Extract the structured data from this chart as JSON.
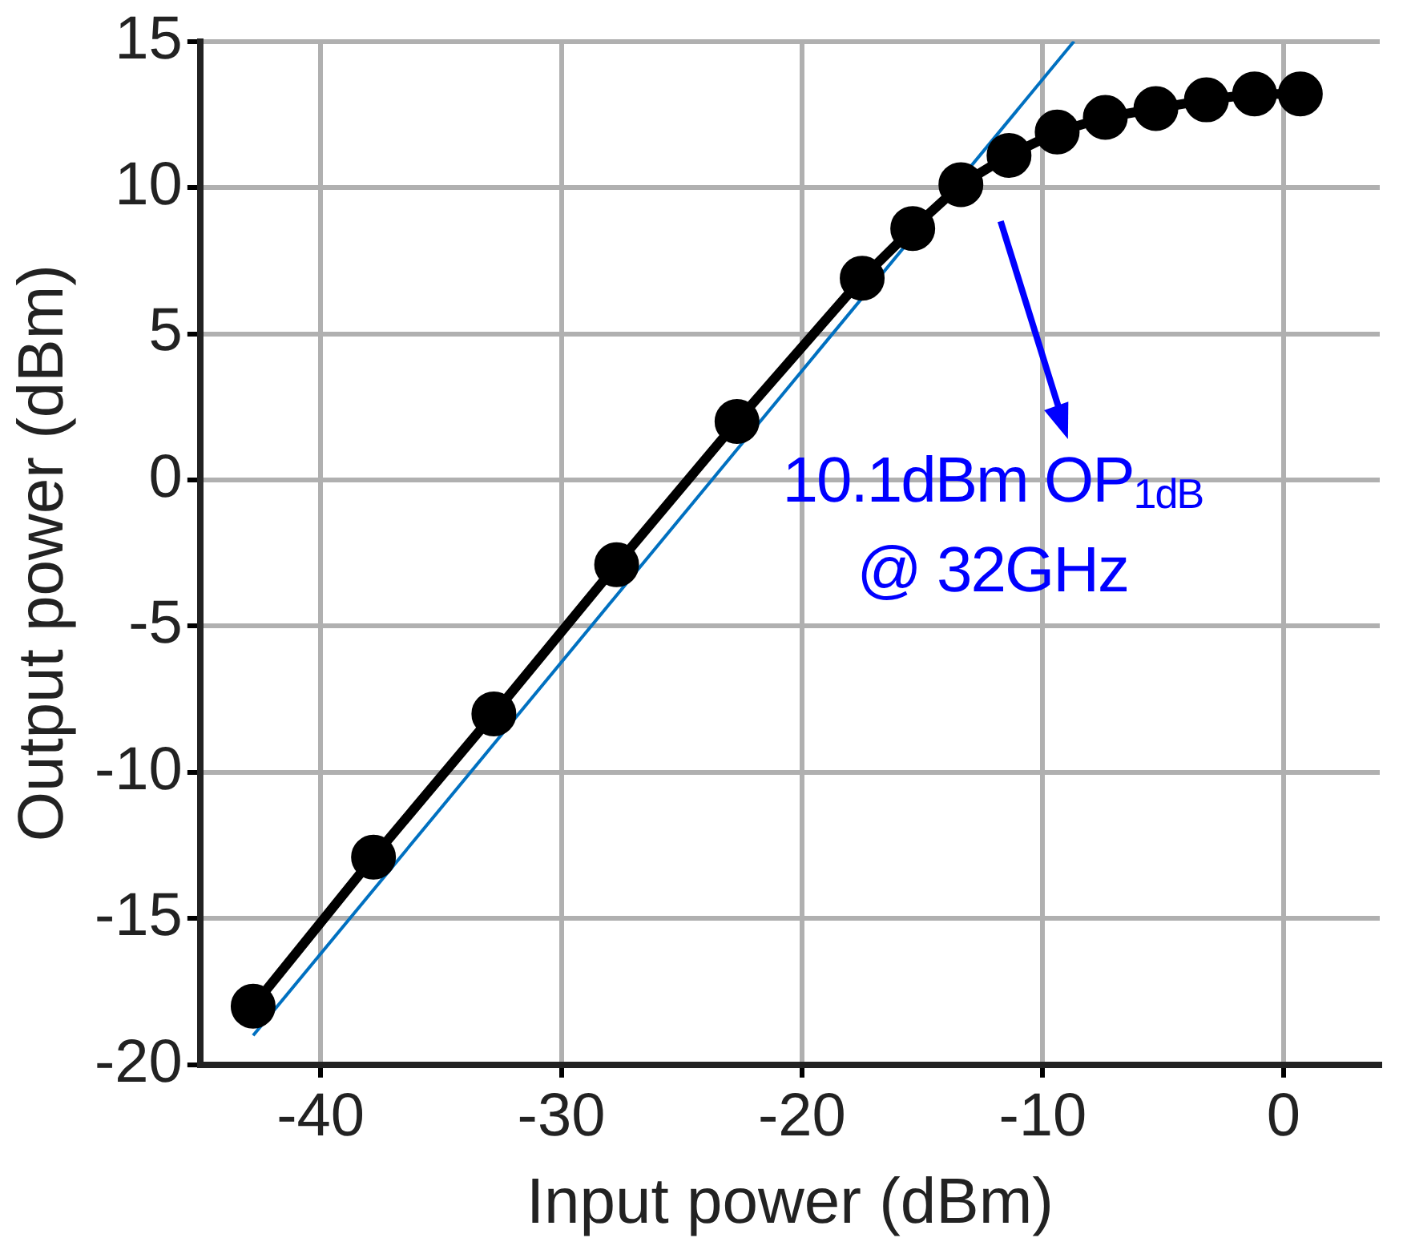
{
  "chart_data": {
    "type": "line",
    "xlabel": "Input power (dBm)",
    "ylabel": "Output power (dBm)",
    "xlim": [
      -45,
      4
    ],
    "xticks": [
      -40,
      -30,
      -20,
      -10,
      0
    ],
    "ylim": [
      -20,
      15
    ],
    "yticks": [
      -20,
      -15,
      -10,
      -5,
      0,
      5,
      10,
      15
    ],
    "grid": true,
    "series": [
      {
        "color": "#000000",
        "marker": "circle",
        "x": [
          -42.8,
          -37.8,
          -32.8,
          -27.7,
          -22.7,
          -17.5,
          -15.4,
          -13.4,
          -11.4,
          -9.4,
          -7.4,
          -5.3,
          -3.2,
          -1.2,
          0.7
        ],
        "values": [
          -18,
          -12.9,
          -8,
          -2.9,
          2,
          6.9,
          8.6,
          10.1,
          11.1,
          11.9,
          12.4,
          12.7,
          13,
          13.2,
          13.2
        ]
      },
      {
        "color": "#0070c0",
        "marker": "none",
        "x": [
          -42.8,
          -8.7
        ],
        "values": [
          -19,
          15
        ]
      }
    ],
    "annotations": [
      "10.1dBm OP$_{1dB}$\n@ 32GHz"
    ]
  }
}
